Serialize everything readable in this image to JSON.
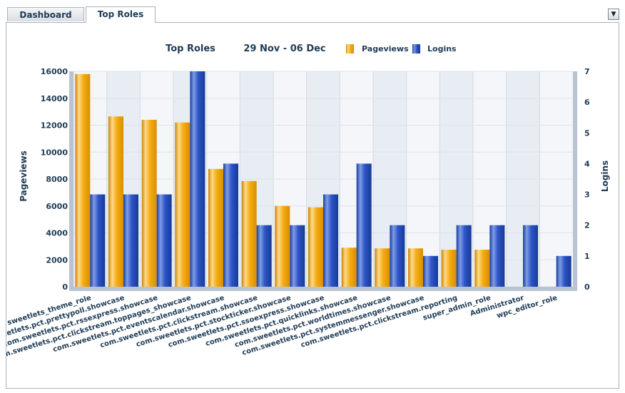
{
  "tabs": [
    {
      "label": "Dashboard",
      "active": false
    },
    {
      "label": "Top Roles",
      "active": true
    }
  ],
  "dropdown_icon": "triangle-down",
  "header": {
    "title": "Top Roles",
    "date_range": "29 Nov - 06 Dec"
  },
  "colors": {
    "pageviews": "#f5ad14",
    "logins": "#2e55c7",
    "plot_band_a": "#f4f6fa",
    "plot_band_b": "#e7edf3"
  },
  "chart_data": {
    "type": "bar",
    "title": "Top Roles",
    "subtitle": "29 Nov - 06 Dec",
    "categories": [
      "sweetlets_theme_role",
      "com.sweetlets.pct.prettypoll.showcase",
      "com.sweetlets.pct.rssexpress.showcase",
      "com.sweetlets.pct.clickstream.toppages_showcase",
      "com.sweetlets.pct.eventscalendar.showcase",
      "com.sweetlets.pct.clickstream.showcase",
      "com.sweetlets.pct.stockticker.showcase",
      "com.sweetlets.pct.ssoexpress.showcase",
      "com.sweetlets.pct.quicklinks.showcase",
      "com.sweetlets.pct.worldtimes.showcase",
      "com.sweetlets.pct.systemmessenger.showcase",
      "com.sweetlets.pct.clickstream.reporting",
      "super_admin_role",
      "Administrator",
      "wpc_editor_role"
    ],
    "series": [
      {
        "name": "Pageviews",
        "axis": "left",
        "values": [
          15800,
          12650,
          12400,
          12200,
          8750,
          7850,
          6000,
          5900,
          2900,
          2850,
          2850,
          2750,
          2750,
          0,
          0
        ]
      },
      {
        "name": "Logins",
        "axis": "right",
        "values": [
          3,
          3,
          3,
          7,
          4,
          2,
          2,
          3,
          4,
          2,
          1,
          2,
          2,
          2,
          1
        ]
      }
    ],
    "ylabel": "Pageviews",
    "y2label": "Logins",
    "ylim": [
      0,
      16000
    ],
    "y2lim": [
      0,
      7
    ],
    "yticks": [
      "0",
      "2000",
      "4000",
      "6000",
      "8000",
      "10000",
      "12000",
      "14000",
      "16000"
    ],
    "y2ticks": [
      "0",
      "1",
      "2",
      "3",
      "4",
      "5",
      "6",
      "7"
    ],
    "legend": "top",
    "grid": true
  }
}
